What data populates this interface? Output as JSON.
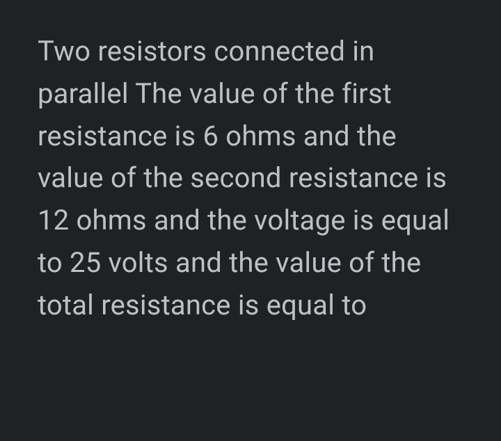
{
  "document": {
    "text": "Two resistors connected in parallel The value of the first resistance is 6 ohms and the value of the second resistance is 12 ohms and the voltage is equal to 25 volts and the value of the total resistance is equal to",
    "text_color": "#bdc1c6",
    "background_color": "#202124",
    "font_size": 40,
    "line_height": 1.52,
    "font_weight": 400
  }
}
